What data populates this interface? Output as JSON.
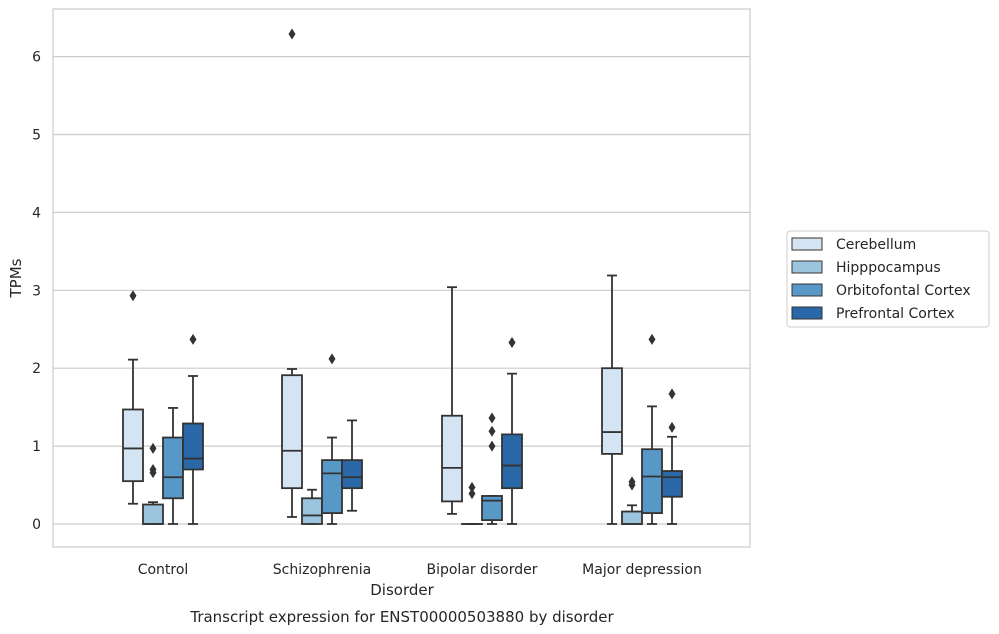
{
  "chart_data": {
    "type": "boxplot",
    "title": "",
    "caption": "Transcript expression for ENST00000503880 by disorder",
    "xlabel": "Disorder",
    "ylabel": "TPMs",
    "ylim": [
      -0.3,
      6.6
    ],
    "yticks": [
      0,
      1,
      2,
      3,
      4,
      5,
      6
    ],
    "grid": "horizontal",
    "legend_position": "right",
    "categories": [
      "Control",
      "Schizophrenia",
      "Bipolar disorder",
      "Major depression"
    ],
    "series": [
      {
        "name": "Cerebellum",
        "color": "#d4e4f2",
        "boxes": [
          {
            "whislo": 0.26,
            "q1": 0.55,
            "med": 0.97,
            "q3": 1.47,
            "whishi": 2.11,
            "fliers": [
              2.93
            ]
          },
          {
            "whislo": 0.09,
            "q1": 0.46,
            "med": 0.94,
            "q3": 1.91,
            "whishi": 1.99,
            "fliers": [
              6.29
            ]
          },
          {
            "whislo": 0.13,
            "q1": 0.29,
            "med": 0.72,
            "q3": 1.39,
            "whishi": 3.04,
            "fliers": []
          },
          {
            "whislo": 0.0,
            "q1": 0.9,
            "med": 1.18,
            "q3": 2.0,
            "whishi": 3.19,
            "fliers": []
          }
        ]
      },
      {
        "name": "Hipppocampus",
        "color": "#9dc4de",
        "boxes": [
          {
            "whislo": 0.0,
            "q1": 0.0,
            "med": 0.0,
            "q3": 0.25,
            "whishi": 0.28,
            "fliers": [
              0.97,
              0.7,
              0.66
            ]
          },
          {
            "whislo": 0.0,
            "q1": 0.0,
            "med": 0.11,
            "q3": 0.33,
            "whishi": 0.44,
            "fliers": []
          },
          {
            "whislo": 0.0,
            "q1": 0.0,
            "med": 0.0,
            "q3": 0.0,
            "whishi": 0.0,
            "fliers": [
              0.47,
              0.39
            ]
          },
          {
            "whislo": 0.0,
            "q1": 0.0,
            "med": 0.0,
            "q3": 0.16,
            "whishi": 0.24,
            "fliers": [
              0.54,
              0.5
            ]
          }
        ]
      },
      {
        "name": "Orbitofontal Cortex",
        "color": "#5898c7",
        "boxes": [
          {
            "whislo": 0.0,
            "q1": 0.33,
            "med": 0.6,
            "q3": 1.11,
            "whishi": 1.49,
            "fliers": []
          },
          {
            "whislo": 0.0,
            "q1": 0.14,
            "med": 0.65,
            "q3": 0.82,
            "whishi": 1.11,
            "fliers": [
              2.12
            ]
          },
          {
            "whislo": 0.0,
            "q1": 0.05,
            "med": 0.3,
            "q3": 0.36,
            "whishi": 0.36,
            "fliers": [
              1.36,
              1.19,
              1.0
            ]
          },
          {
            "whislo": 0.0,
            "q1": 0.14,
            "med": 0.61,
            "q3": 0.96,
            "whishi": 1.51,
            "fliers": [
              2.37
            ]
          }
        ]
      },
      {
        "name": "Prefrontal Cortex",
        "color": "#2a68a8",
        "boxes": [
          {
            "whislo": 0.0,
            "q1": 0.7,
            "med": 0.84,
            "q3": 1.29,
            "whishi": 1.9,
            "fliers": [
              2.37
            ]
          },
          {
            "whislo": 0.17,
            "q1": 0.46,
            "med": 0.6,
            "q3": 0.82,
            "whishi": 1.33,
            "fliers": []
          },
          {
            "whislo": 0.0,
            "q1": 0.46,
            "med": 0.75,
            "q3": 1.15,
            "whishi": 1.93,
            "fliers": [
              2.33
            ]
          },
          {
            "whislo": 0.0,
            "q1": 0.35,
            "med": 0.6,
            "q3": 0.68,
            "whishi": 1.12,
            "fliers": [
              1.67,
              1.24
            ]
          }
        ]
      }
    ]
  }
}
